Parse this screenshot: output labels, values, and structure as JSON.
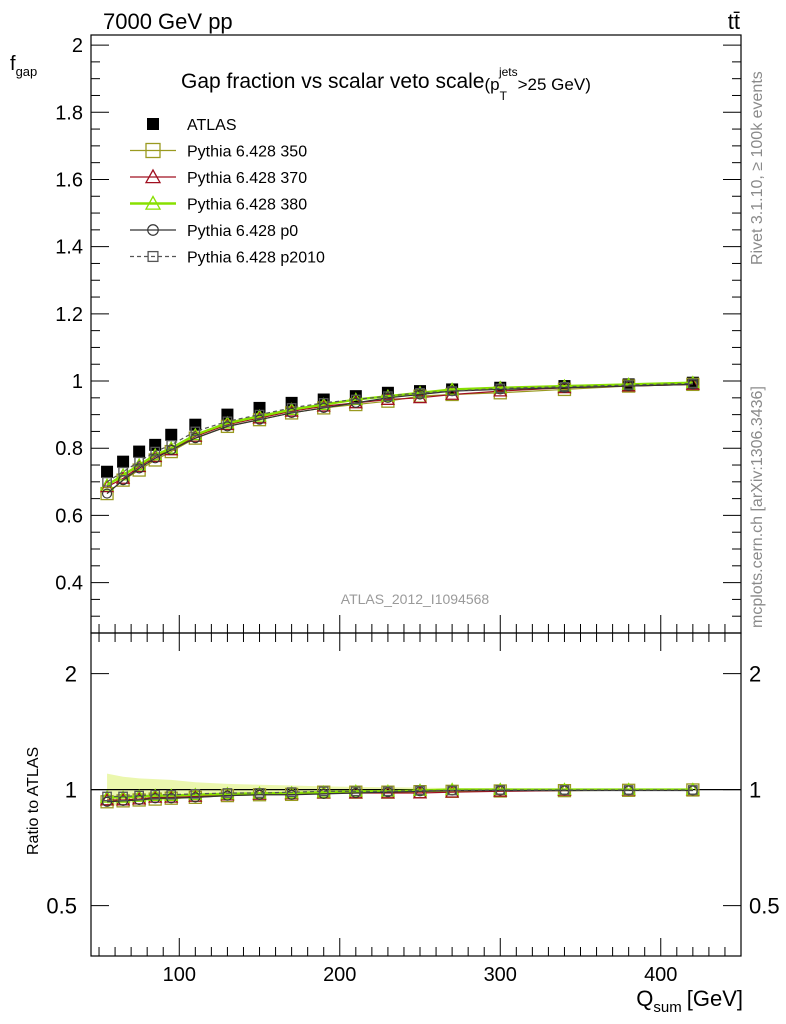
{
  "header": {
    "left_label": "7000 GeV pp",
    "right_label": "tt̄",
    "title": "Gap fraction vs scalar veto scale",
    "cut_open": "(p",
    "cut_sup": "jets",
    "cut_sub": "T",
    "cut_close": ">25 GeV)",
    "side_label_top": "Rivet 3.1.10, ≥ 100k events",
    "side_label_bottom": "mcplots.cern.ch [arXiv:1306.3436]",
    "analysis_id": "ATLAS_2012_I1094568"
  },
  "chart_data": [
    {
      "type": "line",
      "panel": "main",
      "ylabel_main": "f",
      "ylabel_sub": "gap",
      "ylim": [
        0.25,
        2.03
      ],
      "yticks": [
        0.4,
        0.6,
        0.8,
        1,
        1.2,
        1.4,
        1.6,
        1.8,
        2
      ],
      "ytick_labels": [
        "0.4",
        "0.6",
        "0.8",
        "1",
        "1.2",
        "1.4",
        "1.6",
        "1.8",
        "2"
      ],
      "x": [
        55,
        65,
        75,
        85,
        95,
        110,
        130,
        150,
        170,
        190,
        210,
        230,
        250,
        270,
        300,
        340,
        380,
        420
      ],
      "series": [
        {
          "name": "ATLAS",
          "style": "data",
          "color": "#000000",
          "values": [
            0.73,
            0.76,
            0.79,
            0.81,
            0.84,
            0.87,
            0.9,
            0.92,
            0.935,
            0.945,
            0.955,
            0.965,
            0.97,
            0.975,
            0.98,
            0.985,
            0.99,
            0.995
          ]
        },
        {
          "name": "Pythia 6.428 350",
          "style": "square",
          "color": "#9a9a20",
          "values": [
            0.665,
            0.705,
            0.735,
            0.765,
            0.79,
            0.83,
            0.865,
            0.885,
            0.905,
            0.92,
            0.93,
            0.94,
            0.955,
            0.96,
            0.965,
            0.975,
            0.985,
            0.99
          ]
        },
        {
          "name": "Pythia 6.428 370",
          "style": "triangle",
          "color": "#a01020",
          "values": [
            0.685,
            0.71,
            0.745,
            0.775,
            0.795,
            0.835,
            0.87,
            0.89,
            0.91,
            0.925,
            0.935,
            0.945,
            0.95,
            0.96,
            0.97,
            0.98,
            0.985,
            0.99
          ]
        },
        {
          "name": "Pythia 6.428 380",
          "style": "triangle-bright",
          "color": "#88e000",
          "values": [
            0.69,
            0.72,
            0.75,
            0.78,
            0.8,
            0.84,
            0.875,
            0.895,
            0.915,
            0.93,
            0.945,
            0.955,
            0.965,
            0.975,
            0.98,
            0.985,
            0.99,
            0.995
          ]
        },
        {
          "name": "Pythia 6.428 p0",
          "style": "circle",
          "color": "#333333",
          "values": [
            0.665,
            0.705,
            0.74,
            0.77,
            0.795,
            0.83,
            0.865,
            0.885,
            0.905,
            0.92,
            0.935,
            0.95,
            0.96,
            0.97,
            0.975,
            0.98,
            0.985,
            0.99
          ]
        },
        {
          "name": "Pythia 6.428 p2010",
          "style": "dashed-square",
          "color": "#555555",
          "values": [
            0.7,
            0.73,
            0.76,
            0.79,
            0.81,
            0.85,
            0.88,
            0.9,
            0.92,
            0.935,
            0.945,
            0.955,
            0.965,
            0.97,
            0.978,
            0.983,
            0.988,
            0.993
          ]
        }
      ]
    },
    {
      "type": "line",
      "panel": "ratio",
      "ylabel": "Ratio to ATLAS",
      "ylim": [
        0.37,
        2.55
      ],
      "yscale": "log",
      "yticks": [
        0.5,
        1,
        2
      ],
      "ytick_labels": [
        "0.5",
        "1",
        "2"
      ],
      "xlabel_main": "Q",
      "xlabel_sub": "sum",
      "xlabel_unit": "[GeV]",
      "xlim": [
        45,
        450
      ],
      "xticks": [
        100,
        200,
        300,
        400
      ],
      "xtick_labels": [
        "100",
        "200",
        "300",
        "400"
      ],
      "x": [
        55,
        65,
        75,
        85,
        95,
        110,
        130,
        150,
        170,
        190,
        210,
        230,
        250,
        270,
        300,
        340,
        380,
        420
      ],
      "band": {
        "lower": [
          0.9,
          0.92,
          0.93,
          0.935,
          0.94,
          0.955,
          0.965,
          0.97,
          0.975,
          0.98,
          0.983,
          0.986,
          0.988,
          0.99,
          0.992,
          0.994,
          0.995,
          0.996
        ],
        "upper": [
          1.1,
          1.08,
          1.07,
          1.065,
          1.06,
          1.045,
          1.035,
          1.03,
          1.025,
          1.02,
          1.017,
          1.014,
          1.012,
          1.01,
          1.008,
          1.006,
          1.005,
          1.004
        ]
      },
      "series": [
        {
          "name": "Pythia 6.428 350",
          "style": "square",
          "color": "#9a9a20",
          "values": [
            0.93,
            0.935,
            0.94,
            0.945,
            0.95,
            0.955,
            0.965,
            0.97,
            0.972,
            0.985,
            0.985,
            0.985,
            0.988,
            0.99,
            0.992,
            0.994,
            0.996,
            0.998
          ]
        },
        {
          "name": "Pythia 6.428 370",
          "style": "triangle",
          "color": "#a01020",
          "values": [
            0.94,
            0.94,
            0.945,
            0.955,
            0.955,
            0.96,
            0.968,
            0.972,
            0.975,
            0.98,
            0.98,
            0.98,
            0.98,
            0.985,
            0.99,
            0.995,
            0.997,
            0.998
          ]
        },
        {
          "name": "Pythia 6.428 380",
          "style": "triangle-bright",
          "color": "#88e000",
          "values": [
            0.955,
            0.955,
            0.96,
            0.965,
            0.965,
            0.97,
            0.975,
            0.978,
            0.98,
            0.985,
            0.99,
            0.99,
            0.995,
            1.0,
            1.0,
            1.0,
            1.0,
            1.0
          ]
        },
        {
          "name": "Pythia 6.428 p0",
          "style": "circle",
          "color": "#333333",
          "values": [
            0.93,
            0.935,
            0.94,
            0.95,
            0.95,
            0.955,
            0.965,
            0.97,
            0.97,
            0.975,
            0.98,
            0.985,
            0.99,
            0.995,
            0.995,
            0.995,
            0.995,
            0.995
          ]
        },
        {
          "name": "Pythia 6.428 p2010",
          "style": "dashed-square",
          "color": "#555555",
          "values": [
            0.96,
            0.96,
            0.965,
            0.97,
            0.97,
            0.975,
            0.98,
            0.98,
            0.985,
            0.99,
            0.99,
            0.99,
            0.995,
            0.995,
            0.998,
            0.998,
            0.998,
            0.998
          ]
        }
      ]
    }
  ]
}
